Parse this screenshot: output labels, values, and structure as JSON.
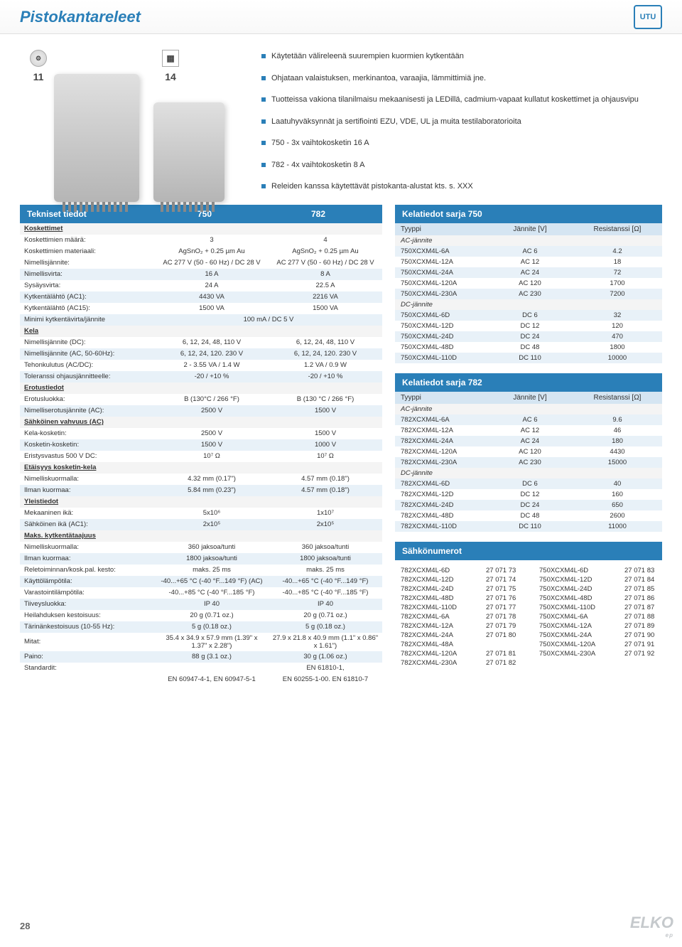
{
  "header": {
    "title": "Pistokantareleet",
    "logo_text": "UTU"
  },
  "badges": {
    "dial": "⚙",
    "b11": "11",
    "b14": "14"
  },
  "bullets": [
    "Käytetään välireleenä suurempien kuormien kytkentään",
    "Ohjataan valaistuksen, merkinantoa, varaajia, lämmittimiä jne.",
    "Tuotteissa vakiona tilanilmaisu mekaanisesti ja LEDillä, cadmium-vapaat kullatut koskettimet ja ohjausvipu",
    "Laatuhyväksynnät ja sertifiointi EZU, VDE, UL ja muita testilaboratorioita",
    "750 - 3x vaihtokosketin 16 A",
    "782 - 4x vaihtokosketin 8 A",
    "Releiden kanssa käytettävät pistokanta-alustat kts. s. XXX"
  ],
  "tech": {
    "title": "Tekniset tiedot",
    "col1": "750",
    "col2": "782",
    "rows": [
      {
        "cat": true,
        "label": "Koskettimet"
      },
      {
        "label": "Koskettimien määrä:",
        "v1": "3",
        "v2": "4"
      },
      {
        "label": "Koskettimien materiaali:",
        "v1": "AgSnO₂ + 0.25 µm Au",
        "v2": "AgSnO₂ + 0.25 µm Au"
      },
      {
        "label": "Nimellisjännite:",
        "v1": "AC 277 V (50 - 60 Hz) / DC 28 V",
        "v2": "AC 277 V (50 - 60 Hz) / DC 28 V"
      },
      {
        "label": "Nimellisvirta:",
        "v1": "16 A",
        "v2": "8 A",
        "alt": true
      },
      {
        "label": "Sysäysvirta:",
        "v1": "24 A",
        "v2": "22.5 A"
      },
      {
        "label": "Kytkentälähtö (AC1):",
        "v1": "4430 VA",
        "v2": "2216 VA",
        "alt": true
      },
      {
        "label": "Kytkentälähtö (AC15):",
        "v1": "1500 VA",
        "v2": "1500 VA"
      },
      {
        "label": "Minimi kytkentävirta/jännite",
        "full": "100 mA / DC 5 V",
        "alt": true
      },
      {
        "cat": true,
        "label": "Kela"
      },
      {
        "label": "Nimellisjännite (DC):",
        "v1": "6, 12, 24, 48, 110 V",
        "v2": "6, 12, 24, 48, 110 V"
      },
      {
        "label": "Nimellisjännite (AC, 50-60Hz):",
        "v1": "6, 12, 24, 120. 230 V",
        "v2": "6, 12, 24, 120. 230 V",
        "alt": true
      },
      {
        "label": "Tehonkulutus (AC/DC):",
        "v1": "2 - 3.55 VA / 1.4 W",
        "v2": "1.2 VA / 0.9 W"
      },
      {
        "label": "Toleranssi ohjausjännitteelle:",
        "v1": "-20 / +10 %",
        "v2": "-20 / +10 %",
        "alt": true
      },
      {
        "cat": true,
        "label": "Erotustiedot"
      },
      {
        "label": "Erotusluokka:",
        "v1": "B (130°C / 266 °F)",
        "v2": "B (130 °C / 266 °F)"
      },
      {
        "label": "Nimelliserotusjännite (AC):",
        "v1": "2500 V",
        "v2": "1500 V",
        "alt": true
      },
      {
        "cat": true,
        "label": "Sähköinen vahvuus (AC)"
      },
      {
        "label": "Kela-kosketin:",
        "v1": "2500 V",
        "v2": "1500 V"
      },
      {
        "label": "Kosketin-kosketin:",
        "v1": "1500 V",
        "v2": "1000 V",
        "alt": true
      },
      {
        "label": "Eristysvastus 500 V DC:",
        "v1": "10⁷ Ω",
        "v2": "10⁷ Ω"
      },
      {
        "cat": true,
        "label": "Etäisyys kosketin-kela"
      },
      {
        "label": "Nimelliskuormalla:",
        "v1": "4.32 mm (0.17\")",
        "v2": "4.57 mm (0.18\")"
      },
      {
        "label": "Ilman kuormaa:",
        "v1": "5.84 mm (0.23\")",
        "v2": "4.57 mm (0.18\")",
        "alt": true
      },
      {
        "cat": true,
        "label": "Yleistiedot"
      },
      {
        "label": "Mekaaninen ikä:",
        "v1": "5x10⁶",
        "v2": "1x10⁷"
      },
      {
        "label": "Sähköinen ikä (AC1):",
        "v1": "2x10⁵",
        "v2": "2x10⁵",
        "alt": true
      },
      {
        "cat": true,
        "label": "Maks. kytkentätaajuus"
      },
      {
        "label": "Nimelliskuormalla:",
        "v1": "360 jaksoa/tunti",
        "v2": "360 jaksoa/tunti"
      },
      {
        "label": "Ilman kuormaa:",
        "v1": "1800 jaksoa/tunti",
        "v2": "1800 jaksoa/tunti",
        "alt": true
      },
      {
        "label": "Reletoiminnan/kosk.pal. kesto:",
        "v1": "maks. 25 ms",
        "v2": "maks. 25 ms"
      },
      {
        "label": "Käyttölämpötila:",
        "v1": "-40...+65 °C (-40 °F...149 °F) (AC)",
        "v2": "-40...+65 °C (-40 °F...149 °F)",
        "alt": true
      },
      {
        "label": "Varastointilämpötila:",
        "v1": "-40...+85 °C (-40 °F...185 °F)",
        "v2": "-40...+85 °C (-40 °F...185 °F)"
      },
      {
        "label": "Tiiveysluokka:",
        "v1": "IP 40",
        "v2": "IP 40",
        "alt": true
      },
      {
        "label": "Heilahduksen kestoisuus:",
        "v1": "20 g (0.71 oz.)",
        "v2": "20 g (0.71 oz.)"
      },
      {
        "label": "Tärinänkestoisuus (10-55 Hz):",
        "v1": "5 g (0.18 oz.)",
        "v2": "5 g (0.18 oz.)",
        "alt": true
      },
      {
        "label": "Mitat:",
        "v1": "35.4 x 34.9 x 57.9 mm (1.39\" x 1.37\" x 2.28\")",
        "v2": "27.9 x 21.8 x 40.9 mm (1.1\" x 0.86\" x 1.61\")"
      },
      {
        "label": "Paino:",
        "v1": "88 g (3.1 oz.)",
        "v2": "30 g (1.06 oz.)",
        "alt": true
      },
      {
        "label": "Standardit:",
        "v1": "",
        "v2": "EN 61810-1,"
      },
      {
        "label": "",
        "v1": "EN 60947-4-1, EN 60947-5-1",
        "v2": "EN 60255-1-00. EN 61810-7"
      }
    ]
  },
  "coil750": {
    "title": "Kelatiedot sarja 750",
    "hdr": [
      "Tyyppi",
      "Jännite [V]",
      "Resistanssi [Ω]"
    ],
    "rows": [
      {
        "cat": true,
        "c1": "AC-jännite"
      },
      {
        "c1": "750XCXM4L-6A",
        "c2": "AC 6",
        "c3": "4.2",
        "alt": true
      },
      {
        "c1": "750XCXM4L-12A",
        "c2": "AC 12",
        "c3": "18"
      },
      {
        "c1": "750XCXM4L-24A",
        "c2": "AC 24",
        "c3": "72",
        "alt": true
      },
      {
        "c1": "750XCXM4L-120A",
        "c2": "AC 120",
        "c3": "1700"
      },
      {
        "c1": "750XCXM4L-230A",
        "c2": "AC 230",
        "c3": "7200",
        "alt": true
      },
      {
        "cat": true,
        "c1": "DC-jännite"
      },
      {
        "c1": "750XCXM4L-6D",
        "c2": "DC 6",
        "c3": "32",
        "alt": true
      },
      {
        "c1": "750XCXM4L-12D",
        "c2": "DC 12",
        "c3": "120"
      },
      {
        "c1": "750XCXM4L-24D",
        "c2": "DC 24",
        "c3": "470",
        "alt": true
      },
      {
        "c1": "750XCXM4L-48D",
        "c2": "DC 48",
        "c3": "1800"
      },
      {
        "c1": "750XCXM4L-110D",
        "c2": "DC 110",
        "c3": "10000",
        "alt": true
      }
    ]
  },
  "coil782": {
    "title": "Kelatiedot sarja 782",
    "hdr": [
      "Tyyppi",
      "Jännite [V]",
      "Resistanssi [Ω]"
    ],
    "rows": [
      {
        "cat": true,
        "c1": "AC-jännite"
      },
      {
        "c1": "782XCXM4L-6A",
        "c2": "AC 6",
        "c3": "9.6",
        "alt": true
      },
      {
        "c1": "782XCXM4L-12A",
        "c2": "AC 12",
        "c3": "46"
      },
      {
        "c1": "782XCXM4L-24A",
        "c2": "AC 24",
        "c3": "180",
        "alt": true
      },
      {
        "c1": "782XCXM4L-120A",
        "c2": "AC 120",
        "c3": "4430"
      },
      {
        "c1": "782XCXM4L-230A",
        "c2": "AC 230",
        "c3": "15000",
        "alt": true
      },
      {
        "cat": true,
        "c1": "DC-jännite"
      },
      {
        "c1": "782XCXM4L-6D",
        "c2": "DC 6",
        "c3": "40",
        "alt": true
      },
      {
        "c1": "782XCXM4L-12D",
        "c2": "DC 12",
        "c3": "160"
      },
      {
        "c1": "782XCXM4L-24D",
        "c2": "DC 24",
        "c3": "650",
        "alt": true
      },
      {
        "c1": "782XCXM4L-48D",
        "c2": "DC 48",
        "c3": "2600"
      },
      {
        "c1": "782XCXM4L-110D",
        "c2": "DC 110",
        "c3": "11000",
        "alt": true
      }
    ]
  },
  "partnum": {
    "title": "Sähkönumerot",
    "left": [
      {
        "pn": "782XCXM4L-6D",
        "code": "27 071 73"
      },
      {
        "pn": "782XCXM4L-12D",
        "code": "27 071 74"
      },
      {
        "pn": "782XCXM4L-24D",
        "code": "27 071 75"
      },
      {
        "pn": "782XCXM4L-48D",
        "code": "27 071 76"
      },
      {
        "pn": "782XCXM4L-110D",
        "code": "27 071 77"
      },
      {
        "pn": "782XCXM4L-6A",
        "code": "27 071 78"
      },
      {
        "pn": "782XCXM4L-12A",
        "code": "27 071 79"
      },
      {
        "pn": "782XCXM4L-24A",
        "code": "27 071 80"
      },
      {
        "pn": "782XCXM4L-48A",
        "code": ""
      },
      {
        "pn": "782XCXM4L-120A",
        "code": "27 071 81"
      },
      {
        "pn": "782XCXM4L-230A",
        "code": "27 071 82"
      }
    ],
    "right": [
      {
        "pn": "750XCXM4L-6D",
        "code": "27 071 83"
      },
      {
        "pn": "750XCXM4L-12D",
        "code": "27 071 84"
      },
      {
        "pn": "750XCXM4L-24D",
        "code": "27 071 85"
      },
      {
        "pn": "750XCXM4L-48D",
        "code": "27 071 86"
      },
      {
        "pn": "750XCXM4L-110D",
        "code": "27 071 87"
      },
      {
        "pn": "750XCXM4L-6A",
        "code": "27 071 88"
      },
      {
        "pn": "750XCXM4L-12A",
        "code": "27 071 89"
      },
      {
        "pn": "750XCXM4L-24A",
        "code": "27 071 90"
      },
      {
        "pn": "750XCXM4L-120A",
        "code": "27 071 91"
      },
      {
        "pn": "750XCXM4L-230A",
        "code": "27 071 92"
      }
    ]
  },
  "footer": {
    "page": "28",
    "brand": "ELKO",
    "brand_sub": "ep"
  },
  "colors": {
    "primary": "#2a7fb8",
    "row_alt": "#e8f1f8",
    "hdr_light": "#d5e5f2"
  }
}
